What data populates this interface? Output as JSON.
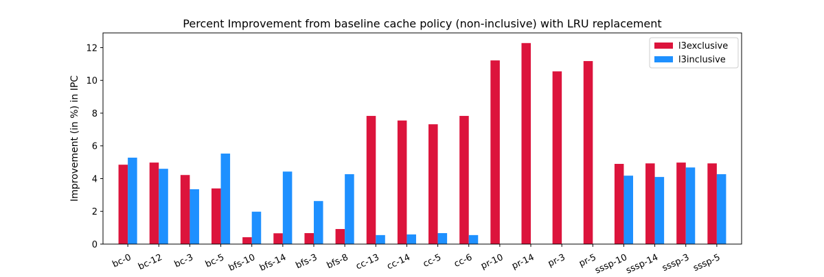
{
  "chart_data": {
    "type": "bar",
    "title": "Percent Improvement from baseline cache policy (non-inclusive) with LRU replacement",
    "xlabel": "",
    "ylabel": "Improvement (in %) in IPC",
    "ylim": [
      0,
      12.9
    ],
    "yticks": [
      0,
      2,
      4,
      6,
      8,
      10,
      12
    ],
    "grid": false,
    "legend_position": "top-right",
    "categories": [
      "bc-0",
      "bc-12",
      "bc-3",
      "bc-5",
      "bfs-10",
      "bfs-14",
      "bfs-3",
      "bfs-8",
      "cc-13",
      "cc-14",
      "cc-5",
      "cc-6",
      "pr-10",
      "pr-14",
      "pr-3",
      "pr-5",
      "sssp-10",
      "sssp-14",
      "sssp-3",
      "sssp-5"
    ],
    "series": [
      {
        "name": "l3exclusive",
        "color": "#dc143c",
        "values": [
          4.85,
          4.98,
          4.22,
          3.4,
          0.42,
          0.66,
          0.67,
          0.92,
          7.83,
          7.55,
          7.32,
          7.83,
          11.22,
          12.28,
          10.55,
          11.18,
          4.9,
          4.93,
          4.98,
          4.93
        ]
      },
      {
        "name": "l3inclusive",
        "color": "#1e90ff",
        "values": [
          5.28,
          4.6,
          3.35,
          5.53,
          1.98,
          4.43,
          2.63,
          4.27,
          0.55,
          0.59,
          0.67,
          0.55,
          0.0,
          0.0,
          0.0,
          0.0,
          4.18,
          4.1,
          4.68,
          4.27
        ]
      }
    ]
  }
}
